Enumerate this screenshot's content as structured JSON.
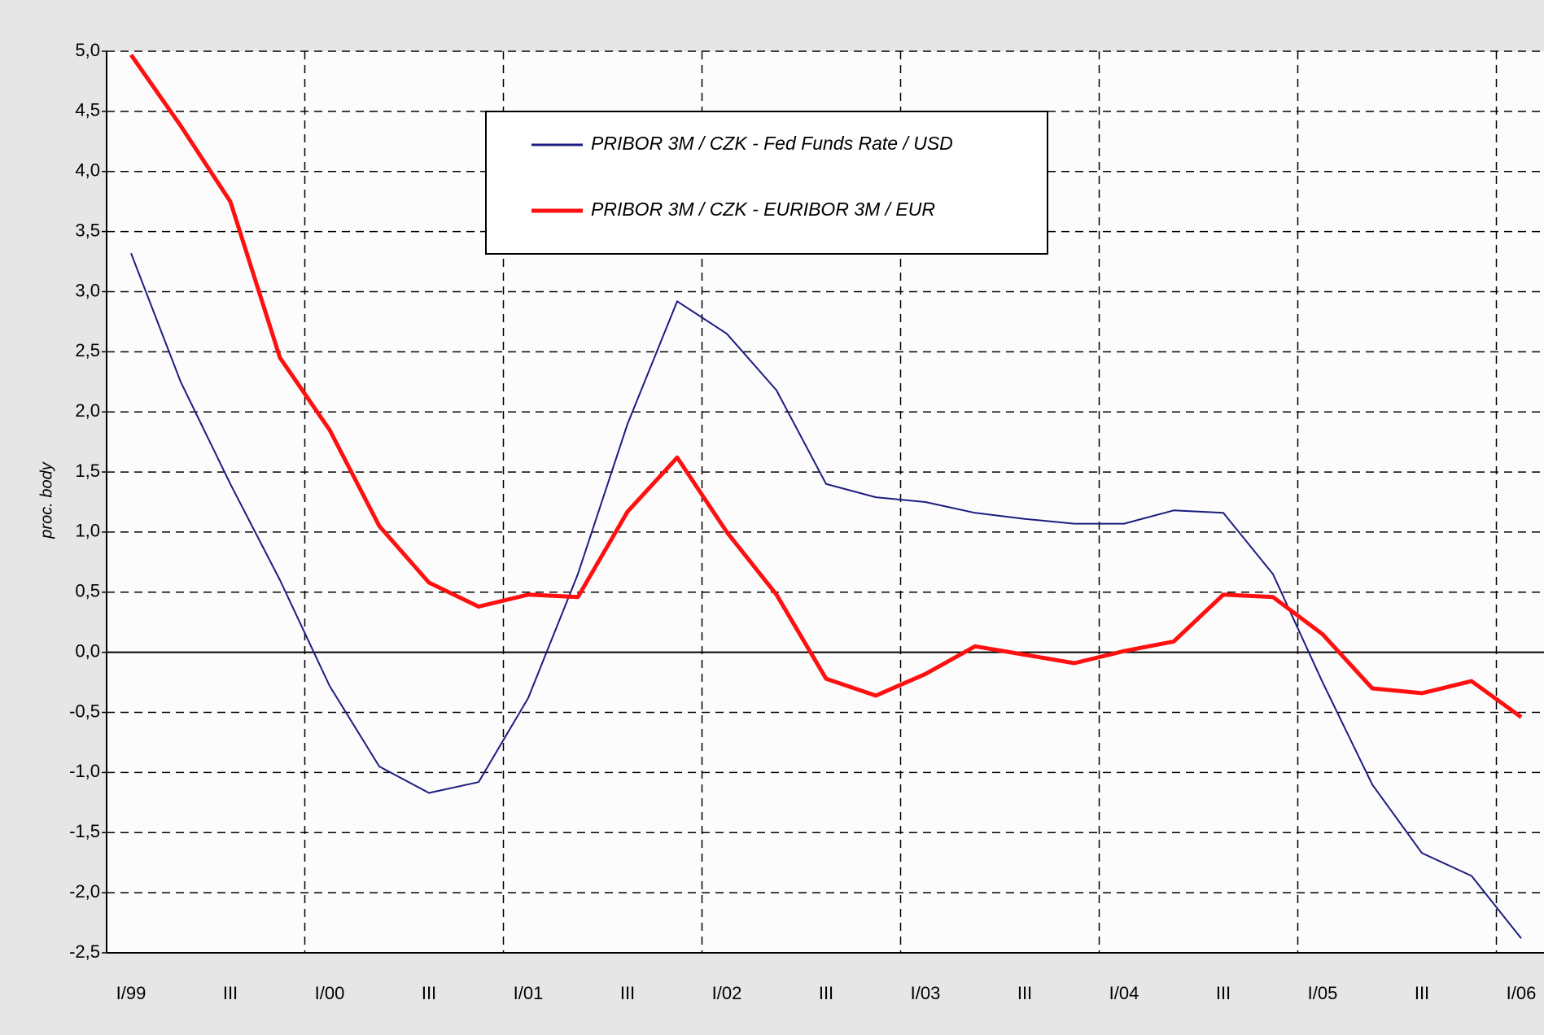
{
  "chart_data": {
    "type": "line",
    "y_label": "proc. body",
    "categories": [
      "I/99",
      null,
      "III",
      null,
      "I/00",
      null,
      "III",
      null,
      "I/01",
      null,
      "III",
      null,
      "I/02",
      null,
      "III",
      null,
      "I/03",
      null,
      "III",
      null,
      "I/04",
      null,
      "III",
      null,
      "I/05",
      null,
      "III",
      null,
      "I/06"
    ],
    "series": [
      {
        "name": "PRIBOR 3M / CZK - Fed Funds Rate / USD",
        "color": "#1c1c80",
        "values": [
          3.32,
          2.25,
          1.4,
          0.6,
          -0.28,
          -0.95,
          -1.17,
          -1.08,
          -0.38,
          0.65,
          1.9,
          2.92,
          2.65,
          2.18,
          1.4,
          1.29,
          1.25,
          1.16,
          1.11,
          1.07,
          1.07,
          1.18,
          1.16,
          0.65,
          -0.25,
          -1.1,
          -1.67,
          -1.86,
          -2.38
        ]
      },
      {
        "name": "PRIBOR 3M / CZK - EURIBOR 3M / EUR",
        "color": "#ff1010",
        "values": [
          4.97,
          4.38,
          3.75,
          2.45,
          1.85,
          1.05,
          0.58,
          0.38,
          0.48,
          0.46,
          1.17,
          1.62,
          1.0,
          0.48,
          -0.22,
          -0.36,
          -0.18,
          0.05,
          -0.02,
          -0.09,
          0.01,
          0.09,
          0.48,
          0.46,
          0.15,
          -0.3,
          -0.34,
          -0.24,
          -0.54
        ]
      }
    ],
    "ylim": [
      -2.5,
      5.0
    ],
    "yticks": [
      {
        "value": 5.0,
        "label": "5,0"
      },
      {
        "value": 4.5,
        "label": "4,5"
      },
      {
        "value": 4.0,
        "label": "4,0"
      },
      {
        "value": 3.5,
        "label": "3,5"
      },
      {
        "value": 3.0,
        "label": "3,0"
      },
      {
        "value": 2.5,
        "label": "2,5"
      },
      {
        "value": 2.0,
        "label": "2,0"
      },
      {
        "value": 1.5,
        "label": "1,5"
      },
      {
        "value": 1.0,
        "label": "1,0"
      },
      {
        "value": 0.5,
        "label": "0,5"
      },
      {
        "value": 0.0,
        "label": "0,0"
      },
      {
        "value": -0.5,
        "label": "-0,5"
      },
      {
        "value": -1.0,
        "label": "-1,0"
      },
      {
        "value": -1.5,
        "label": "-1,5"
      },
      {
        "value": -2.0,
        "label": "-2,0"
      },
      {
        "value": -2.5,
        "label": "-2,5"
      }
    ],
    "grid": true
  }
}
